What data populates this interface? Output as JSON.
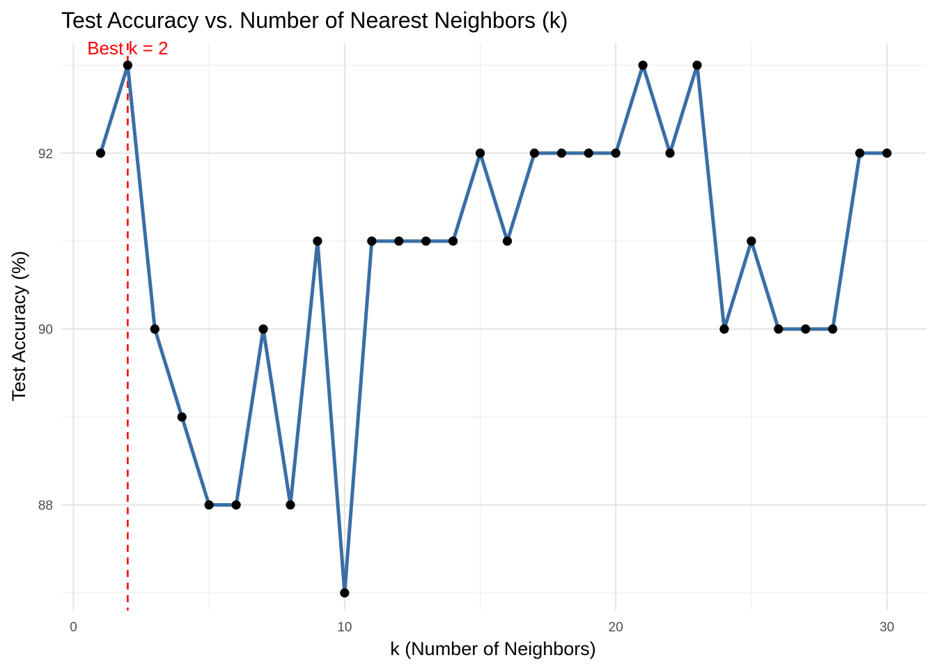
{
  "chart_data": {
    "type": "line",
    "title": "Test Accuracy vs. Number of Nearest Neighbors (k)",
    "xlabel": "k (Number of Neighbors)",
    "ylabel": "Test Accuracy (%)",
    "xlim": [
      -0.45,
      31.45
    ],
    "ylim": [
      86.8,
      93.25
    ],
    "x_major_ticks": [
      0,
      10,
      20,
      30
    ],
    "x_minor_ticks": [
      5,
      15,
      25
    ],
    "y_major_ticks": [
      88,
      90,
      92
    ],
    "y_minor_ticks": [
      87,
      89,
      91,
      93
    ],
    "x_tick_labels": [
      "0",
      "10",
      "20",
      "30"
    ],
    "y_tick_labels": [
      "88",
      "90",
      "92"
    ],
    "grid": true,
    "series": [
      {
        "x": [
          1,
          2,
          3,
          4,
          5,
          6,
          7,
          8,
          9,
          10,
          11,
          12,
          13,
          14,
          15,
          16,
          17,
          18,
          19,
          20,
          21,
          22,
          23,
          24,
          25,
          26,
          27,
          28,
          29,
          30
        ],
        "values": [
          92,
          93,
          90,
          89,
          88,
          88,
          90,
          88,
          91,
          87,
          91,
          91,
          91,
          91,
          92,
          91,
          92,
          92,
          92,
          92,
          93,
          92,
          93,
          90,
          91,
          90,
          90,
          90,
          92,
          92
        ],
        "color": "#3a6ea5",
        "marker_color": "#000000"
      }
    ],
    "annotations": [
      {
        "type": "vline",
        "x": 2,
        "color": "#ff0000",
        "style": "dashed"
      },
      {
        "type": "text",
        "text": "Best k = 2",
        "x": 2,
        "color": "#ff0000"
      }
    ]
  }
}
